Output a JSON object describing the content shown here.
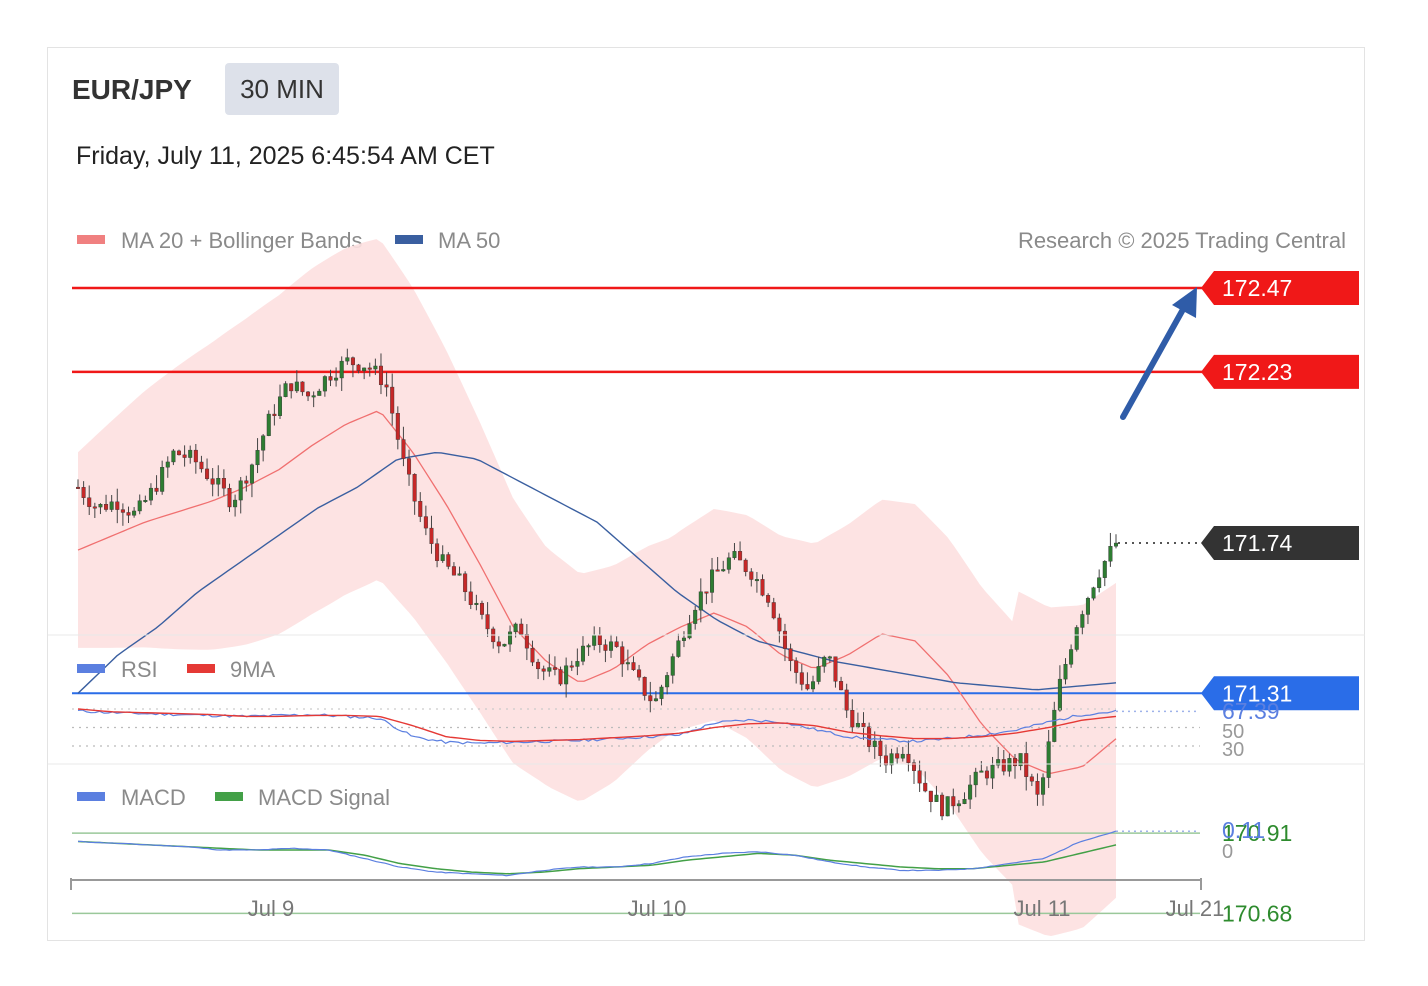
{
  "header": {
    "symbol": "EUR/JPY",
    "timeframe": "30 MIN",
    "datetime": "Friday, July 11, 2025 6:45:54 AM CET"
  },
  "legend": {
    "ma20": "MA 20 + Bollinger Bands",
    "ma50": "MA 50",
    "copyright": "Research © 2025 Trading Central",
    "rsi": "RSI",
    "rsi_ma": "9MA",
    "macd": "MACD",
    "macd_signal": "MACD Signal"
  },
  "colors": {
    "resistance": "#f01818",
    "support_main": "#2a6de8",
    "support_minor": "#2e8b2e",
    "current": "#333333",
    "ma20": "#f07070",
    "ma50": "#3a5fa0",
    "bollinger_fill": "#fde0e0",
    "arrow": "#2f5ca8",
    "candle_up": "#2e7d32",
    "candle_down": "#c62828",
    "rsi": "#5b7fe0",
    "rsi_ma": "#e53935",
    "macd": "#5b7fe0",
    "macd_signal": "#43a047"
  },
  "chart_data": [
    {
      "type": "candlestick",
      "name": "price",
      "ylim": [
        170.5,
        172.7
      ],
      "levels": [
        {
          "label": "172.47",
          "value": 172.47,
          "kind": "resistance"
        },
        {
          "label": "172.23",
          "value": 172.23,
          "kind": "resistance"
        },
        {
          "label": "171.74",
          "value": 171.74,
          "kind": "current"
        },
        {
          "label": "171.31",
          "value": 171.31,
          "kind": "support-main"
        },
        {
          "label": "170.91",
          "value": 170.91,
          "kind": "support"
        },
        {
          "label": "170.68",
          "value": 170.68,
          "kind": "support"
        }
      ],
      "close_path": [
        171.9,
        171.84,
        171.86,
        171.82,
        171.9,
        172.0,
        171.98,
        171.92,
        171.86,
        171.96,
        172.1,
        172.2,
        172.16,
        172.22,
        172.26,
        172.25,
        172.2,
        171.95,
        171.78,
        171.68,
        171.62,
        171.52,
        171.45,
        171.5,
        171.38,
        171.35,
        171.42,
        171.46,
        171.44,
        171.35,
        171.28,
        171.42,
        171.56,
        171.64,
        171.7,
        171.66,
        171.58,
        171.4,
        171.32,
        171.42,
        171.26,
        171.18,
        171.12,
        171.16,
        171.04,
        170.98,
        171.02,
        171.08,
        171.1,
        171.12,
        171.0,
        171.32,
        171.52,
        171.65,
        171.74
      ],
      "ma20_path": [
        171.72,
        171.76,
        171.8,
        171.83,
        171.86,
        171.9,
        171.95,
        172.02,
        172.08,
        172.12,
        172.0,
        171.85,
        171.68,
        171.5,
        171.4,
        171.34,
        171.38,
        171.45,
        171.5,
        171.54,
        171.5,
        171.42,
        171.38,
        171.42,
        171.48,
        171.46,
        171.36,
        171.22,
        171.12,
        171.08,
        171.1,
        171.18
      ],
      "ma50_path": [
        171.31,
        171.42,
        171.5,
        171.6,
        171.68,
        171.76,
        171.84,
        171.9,
        171.98,
        172.0,
        171.98,
        171.92,
        171.86,
        171.8,
        171.7,
        171.6,
        171.52,
        171.46,
        171.43,
        171.4,
        171.38,
        171.36,
        171.34,
        171.33,
        171.32,
        171.33,
        171.34
      ]
    },
    {
      "type": "line",
      "name": "rsi",
      "current": "67.39",
      "levels": [
        "50",
        "30"
      ],
      "rsi_path": [
        68,
        66,
        65,
        64,
        63,
        62,
        63,
        64,
        62,
        60,
        40,
        34,
        33,
        34,
        35,
        36,
        38,
        40,
        42,
        55,
        58,
        56,
        48,
        40,
        37,
        35,
        38,
        42,
        47,
        56,
        64,
        67.39
      ],
      "ma_path": [
        70,
        67,
        66,
        65,
        64,
        62,
        62,
        63,
        63,
        62,
        52,
        40,
        36,
        35,
        36,
        37,
        39,
        41,
        44,
        50,
        54,
        55,
        52,
        45,
        41,
        38,
        38,
        40,
        44,
        50,
        58,
        62
      ]
    },
    {
      "type": "line",
      "name": "macd",
      "current": "0.11",
      "levels": [
        "0"
      ],
      "macd_path": [
        0.05,
        0.04,
        0.03,
        0.02,
        0.0,
        0.0,
        0.01,
        0.0,
        -0.05,
        -0.1,
        -0.13,
        -0.14,
        -0.15,
        -0.12,
        -0.1,
        -0.1,
        -0.08,
        -0.04,
        -0.02,
        -0.01,
        -0.03,
        -0.07,
        -0.1,
        -0.12,
        -0.12,
        -0.11,
        -0.08,
        -0.05,
        0.05,
        0.11
      ],
      "signal_path": [
        0.05,
        0.04,
        0.03,
        0.02,
        0.01,
        0.0,
        0.0,
        0.0,
        -0.03,
        -0.08,
        -0.11,
        -0.13,
        -0.14,
        -0.13,
        -0.11,
        -0.1,
        -0.09,
        -0.06,
        -0.04,
        -0.02,
        -0.03,
        -0.06,
        -0.08,
        -0.1,
        -0.11,
        -0.11,
        -0.09,
        -0.07,
        -0.02,
        0.03
      ]
    }
  ],
  "x_axis": {
    "ticks": [
      "Jul 9",
      "Jul 10",
      "Jul 11",
      "Jul 21"
    ]
  }
}
